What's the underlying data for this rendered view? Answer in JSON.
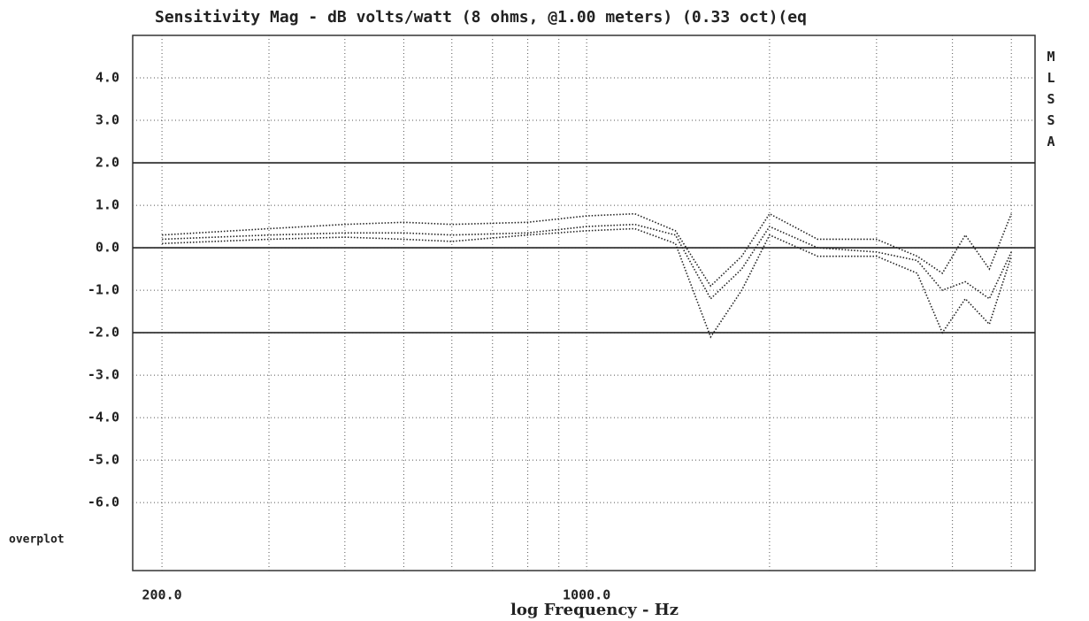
{
  "chart_data": {
    "type": "line",
    "title": "Sensitivity Mag - dB volts/watt (8 ohms, @1.00 meters) (0.33 oct)(eq",
    "x_label": "log Frequency - Hz",
    "side_label": "MLSSA",
    "corner_label": "overplot",
    "xscale": "log",
    "xlim": [
      179,
      5470
    ],
    "xticks": [
      {
        "value": 200,
        "label": "200.0"
      },
      {
        "value": 1000,
        "label": "1000.0"
      }
    ],
    "xminor": [
      300,
      400,
      500,
      600,
      700,
      800,
      900,
      2000,
      3000,
      4000,
      5000
    ],
    "ylim": [
      -7.6,
      5.0
    ],
    "yticks": [
      {
        "value": 4,
        "label": "4.0"
      },
      {
        "value": 3,
        "label": "3.0"
      },
      {
        "value": 2,
        "label": "2.0"
      },
      {
        "value": 1,
        "label": "1.0"
      },
      {
        "value": 0,
        "label": "0.0"
      },
      {
        "value": -1,
        "label": "-1.0"
      },
      {
        "value": -2,
        "label": "-2.0"
      },
      {
        "value": -3,
        "label": "-3.0"
      },
      {
        "value": -4,
        "label": "-4.0"
      },
      {
        "value": -5,
        "label": "-5.0"
      },
      {
        "value": -6,
        "label": "-6.0"
      }
    ],
    "reference_lines": [
      2,
      0,
      -2
    ],
    "grid": true,
    "x": [
      200,
      300,
      400,
      500,
      600,
      800,
      1000,
      1200,
      1400,
      1600,
      1800,
      2000,
      2400,
      3000,
      3500,
      3850,
      4200,
      4600,
      5000
    ],
    "series": [
      {
        "color": "#222222",
        "values": [
          0.3,
          0.45,
          0.55,
          0.6,
          0.55,
          0.6,
          0.75,
          0.8,
          0.4,
          -0.9,
          -0.2,
          0.8,
          0.2,
          0.2,
          -0.2,
          -0.6,
          0.3,
          -0.5,
          0.8
        ]
      },
      {
        "color": "#222222",
        "values": [
          0.2,
          0.3,
          0.35,
          0.35,
          0.3,
          0.35,
          0.5,
          0.55,
          0.3,
          -1.2,
          -0.5,
          0.5,
          0.0,
          -0.1,
          -0.3,
          -1.0,
          -0.8,
          -1.2,
          -0.1
        ]
      },
      {
        "color": "#444444",
        "values": [
          0.1,
          0.2,
          0.25,
          0.2,
          0.15,
          0.3,
          0.4,
          0.45,
          0.1,
          -2.1,
          -1.0,
          0.3,
          -0.2,
          -0.2,
          -0.6,
          -2.0,
          -1.2,
          -1.8,
          -0.2
        ]
      }
    ]
  }
}
